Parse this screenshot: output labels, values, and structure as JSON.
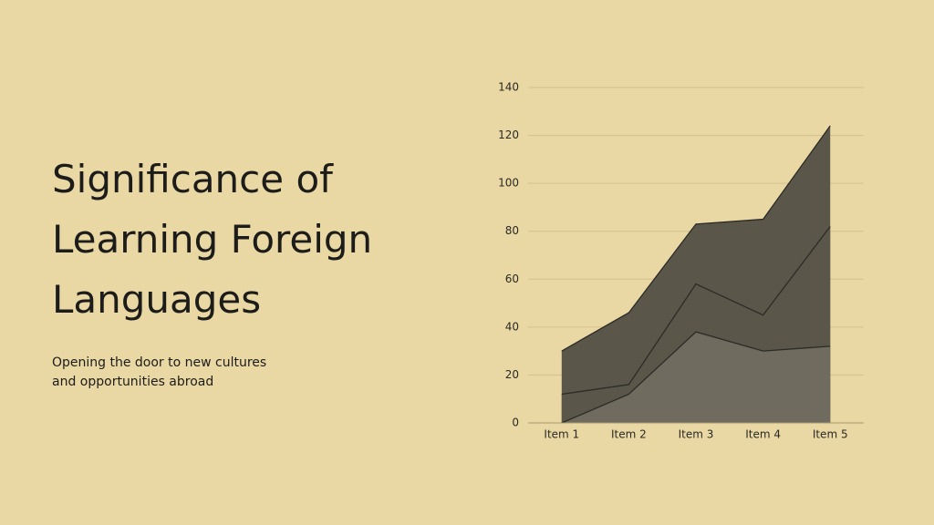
{
  "slide": {
    "title_lines": [
      "Significance of",
      "Learning Foreign",
      "Languages"
    ],
    "subtitle_lines": [
      "Opening the door to new cultures",
      "and opportunities abroad"
    ]
  },
  "chart_data": {
    "type": "area",
    "categories": [
      "Item 1",
      "Item 2",
      "Item 3",
      "Item 4",
      "Item 5"
    ],
    "series": [
      {
        "color": "#5a5649",
        "values": [
          30,
          46,
          83,
          85,
          124
        ]
      },
      {
        "color": "#5a5649",
        "values": [
          12,
          16,
          58,
          45,
          82
        ]
      },
      {
        "color": "#6f6b5e",
        "values": [
          0,
          12,
          38,
          30,
          32
        ]
      }
    ],
    "ylim": [
      0,
      140
    ],
    "yticks": [
      0,
      20,
      40,
      60,
      80,
      100,
      120,
      140
    ],
    "grid": true
  }
}
